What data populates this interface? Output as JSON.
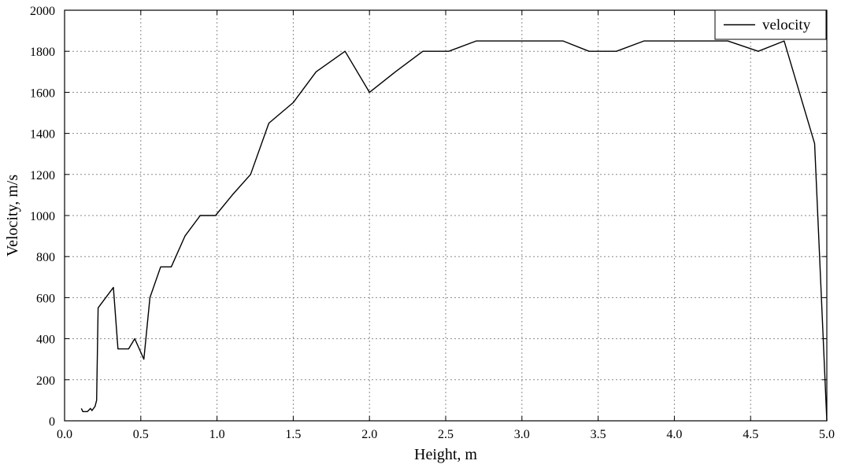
{
  "chart_data": {
    "type": "line",
    "xlabel": "Height, m",
    "ylabel": "Velocity, m/s",
    "xlim": [
      0.0,
      5.0
    ],
    "ylim": [
      0,
      2000
    ],
    "xticks": [
      "0.0",
      "0.5",
      "1.0",
      "1.5",
      "2.0",
      "2.5",
      "3.0",
      "3.5",
      "4.0",
      "4.5",
      "5.0"
    ],
    "yticks": [
      "0",
      "200",
      "400",
      "600",
      "800",
      "1000",
      "1200",
      "1400",
      "1600",
      "1800",
      "2000"
    ],
    "grid": true,
    "legend_position": "top-right",
    "series": [
      {
        "name": "velocity",
        "color": "#000000",
        "x": [
          0.11,
          0.12,
          0.15,
          0.17,
          0.18,
          0.2,
          0.21,
          0.22,
          0.32,
          0.35,
          0.42,
          0.46,
          0.49,
          0.52,
          0.56,
          0.63,
          0.7,
          0.79,
          0.89,
          0.99,
          1.1,
          1.22,
          1.34,
          1.5,
          1.65,
          1.84,
          2.0,
          2.17,
          2.35,
          2.52,
          2.7,
          2.88,
          3.08,
          3.27,
          3.44,
          3.62,
          3.8,
          3.98,
          4.17,
          4.35,
          4.55,
          4.72,
          4.92,
          5.0
        ],
        "y": [
          60,
          45,
          45,
          60,
          50,
          70,
          100,
          550,
          650,
          350,
          350,
          400,
          350,
          300,
          600,
          750,
          750,
          900,
          1000,
          1000,
          1100,
          1200,
          1450,
          1550,
          1700,
          1800,
          1600,
          1700,
          1800,
          1800,
          1850,
          1850,
          1850,
          1850,
          1800,
          1800,
          1850,
          1850,
          1850,
          1850,
          1800,
          1850,
          1350,
          0
        ]
      }
    ]
  }
}
